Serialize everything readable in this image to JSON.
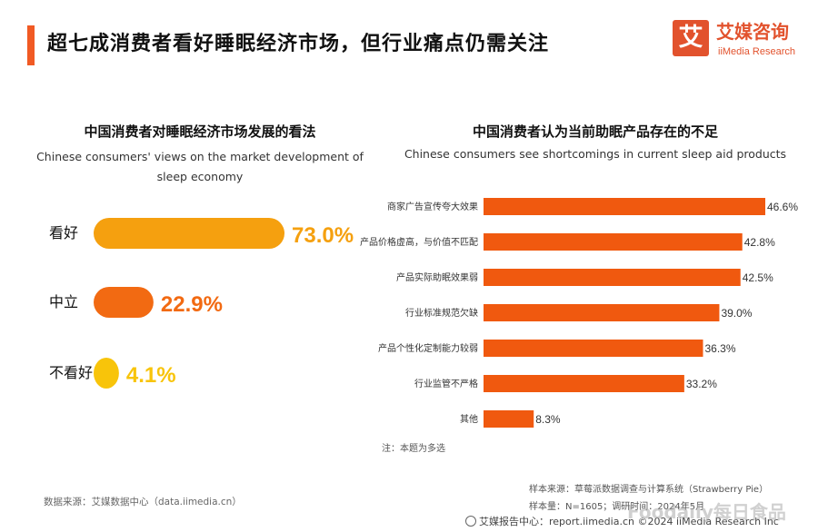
{
  "header": {
    "title": "超七成消费者看好睡眠经济市场，但行业痛点仍需关注",
    "logo_mark": "艾",
    "logo_cn": "艾媒咨询",
    "logo_en": "iiMedia Research"
  },
  "colors": {
    "accent": "#f15a24",
    "bar_orange": "#f0590f",
    "pill_amber": "#f5a00f",
    "pill_orange": "#f26a12",
    "pill_yellow": "#f8c40a"
  },
  "chart_data": [
    {
      "type": "bar",
      "orientation": "horizontal",
      "title": "中国消费者对睡眠经济市场发展的看法",
      "subtitle": "Chinese consumers' views on the market development of sleep economy",
      "categories": [
        "看好",
        "中立",
        "不看好"
      ],
      "values": [
        73.0,
        22.9,
        4.1
      ],
      "value_labels": [
        "73.0%",
        "22.9%",
        "4.1%"
      ],
      "colors": [
        "#f5a00f",
        "#f26a12",
        "#f8c40a"
      ],
      "unit": "%"
    },
    {
      "type": "bar",
      "orientation": "horizontal",
      "title": "中国消费者认为当前助眠产品存在的不足",
      "subtitle": "Chinese consumers see shortcomings in current sleep aid products",
      "categories": [
        "商家广告宣传夸大效果",
        "产品价格虚高，与价值不匹配",
        "产品实际助眠效果弱",
        "行业标准规范欠缺",
        "产品个性化定制能力较弱",
        "行业监管不严格",
        "其他"
      ],
      "values": [
        46.6,
        42.8,
        42.5,
        39.0,
        36.3,
        33.2,
        8.3
      ],
      "value_labels": [
        "46.6%",
        "42.8%",
        "42.5%",
        "39.0%",
        "36.3%",
        "33.2%",
        "8.3%"
      ],
      "unit": "%"
    }
  ],
  "notes": {
    "multi_choice": "注：本题为多选"
  },
  "footer": {
    "source_left": "数据来源：艾媒数据中心（data.iimedia.cn）",
    "sample_source": "样本来源：草莓派数据调查与计算系统（Strawberry Pie）",
    "sample_size": "样本量：N=1605；调研时间：2024年5月",
    "bottom_line": "艾媒报告中心：report.iimedia.cn   ©2024  iiMedia Research Inc",
    "watermark": "Foodaily每日食品"
  }
}
